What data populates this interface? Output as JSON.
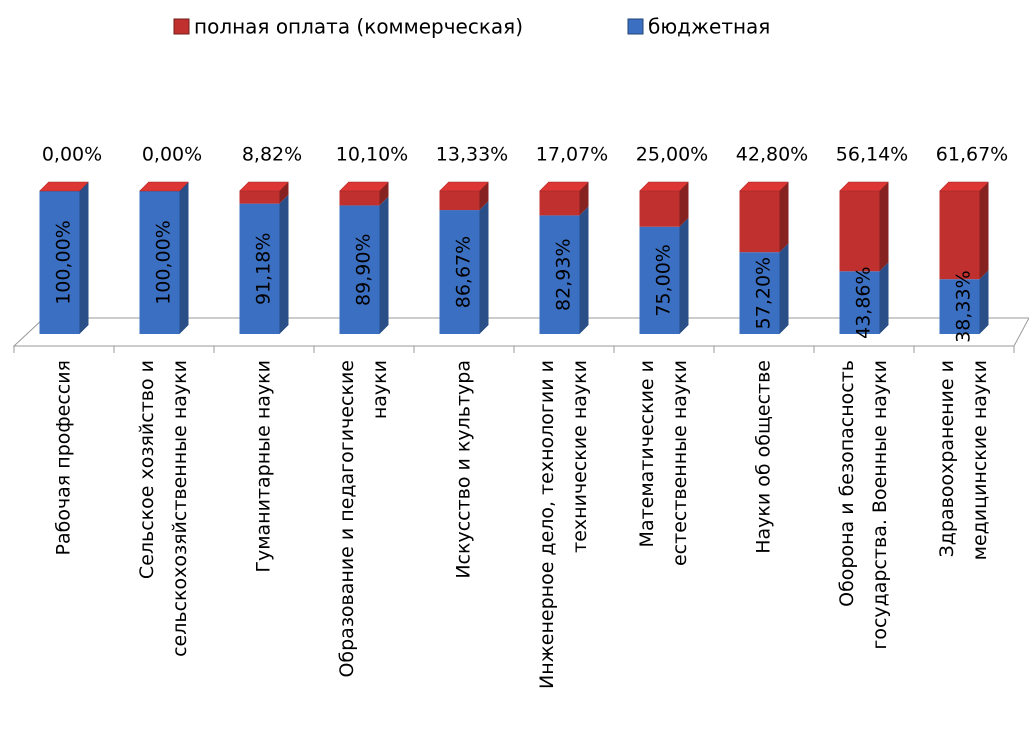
{
  "chart_data": {
    "type": "bar3d_stacked",
    "categories": [
      [
        "Рабочая профессия"
      ],
      [
        "Сельское хозяйство и",
        "сельскохозяйственные науки"
      ],
      [
        "Гуманитарные науки"
      ],
      [
        "Образование и педагогические",
        "науки"
      ],
      [
        "Искусство и культура"
      ],
      [
        "Инженерное дело, технологии и",
        "технические науки"
      ],
      [
        "Математические и",
        "естественные науки"
      ],
      [
        "Науки об обществе"
      ],
      [
        "Оборона и безопасность",
        "государства. Военные науки"
      ],
      [
        "Здравоохранение и",
        "медицинские науки"
      ]
    ],
    "series": [
      {
        "name": "полная оплата (коммерческая)",
        "color": "#c0302e",
        "values": [
          0,
          0,
          8.82,
          10.1,
          13.33,
          17.07,
          25,
          42.8,
          56.14,
          61.67
        ],
        "value_labels": [
          "0,00%",
          "0,00%",
          "8,82%",
          "10,10%",
          "13,33%",
          "17,07%",
          "25,00%",
          "42,80%",
          "56,14%",
          "61,67%"
        ]
      },
      {
        "name": "бюджетная",
        "color": "#3b6fc2",
        "values": [
          100,
          100,
          91.18,
          89.9,
          86.67,
          82.93,
          75,
          57.2,
          43.86,
          38.33
        ],
        "value_labels": [
          "100,00%",
          "100,00%",
          "91,18%",
          "89,90%",
          "86,67%",
          "82,93%",
          "75,00%",
          "57,20%",
          "43,86%",
          "38,33%"
        ]
      }
    ],
    "ylim": [
      0,
      100
    ]
  }
}
